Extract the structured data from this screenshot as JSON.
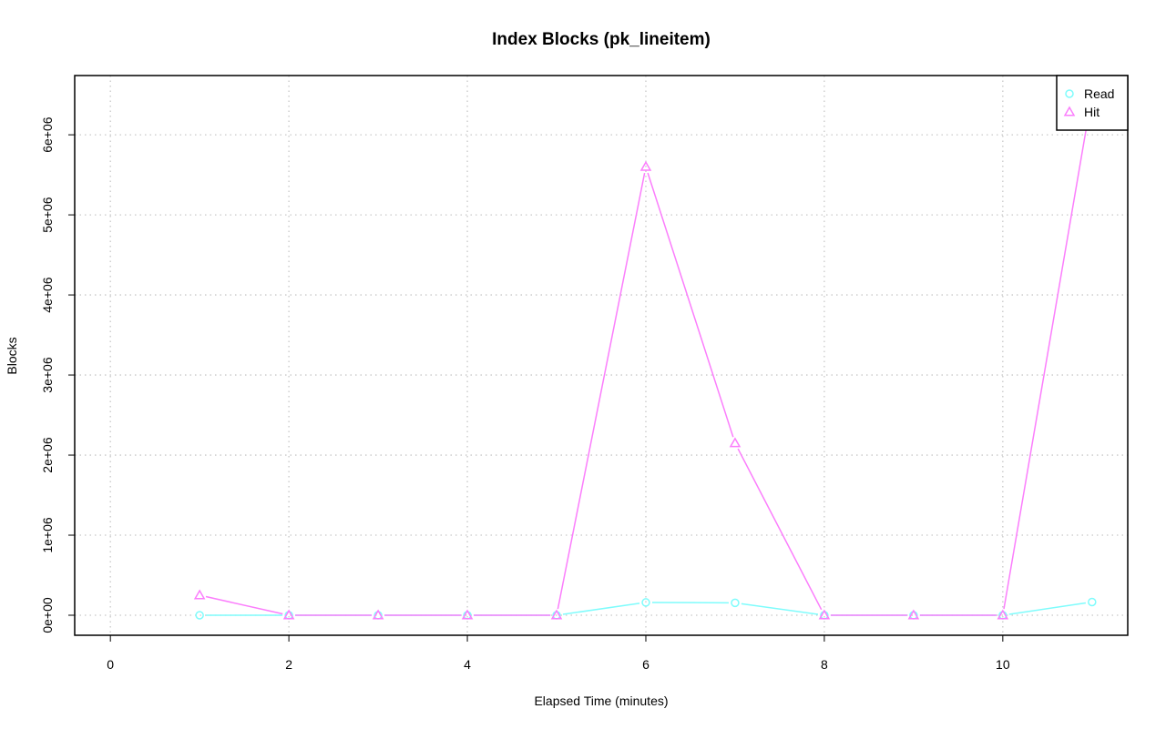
{
  "chart_data": {
    "type": "line",
    "title": "Index Blocks (pk_lineitem)",
    "xlabel": "Elapsed Time (minutes)",
    "ylabel": "Blocks",
    "xlim": [
      -0.4,
      11.4
    ],
    "ylim": [
      -250000,
      6740000
    ],
    "x_ticks": [
      0,
      2,
      4,
      6,
      8,
      10
    ],
    "x_tick_labels": [
      "0",
      "2",
      "4",
      "6",
      "8",
      "10"
    ],
    "y_ticks": [
      0,
      1000000,
      2000000,
      3000000,
      4000000,
      5000000,
      6000000
    ],
    "y_tick_labels": [
      "0e+00",
      "1e+06",
      "2e+06",
      "3e+06",
      "4e+06",
      "5e+06",
      "6e+06"
    ],
    "grid": true,
    "legend_position": "top-right",
    "x": [
      1,
      2,
      3,
      4,
      5,
      6,
      7,
      8,
      9,
      10,
      11
    ],
    "series": [
      {
        "name": "Read",
        "color": "#7ffcfc",
        "marker": "circle",
        "values": [
          0,
          0,
          0,
          0,
          0,
          160000,
          155000,
          0,
          0,
          0,
          165000
        ]
      },
      {
        "name": "Hit",
        "color": "#fb7efc",
        "marker": "triangle",
        "values": [
          250000,
          0,
          0,
          0,
          0,
          5600000,
          2150000,
          0,
          0,
          0,
          6500000
        ]
      }
    ]
  }
}
